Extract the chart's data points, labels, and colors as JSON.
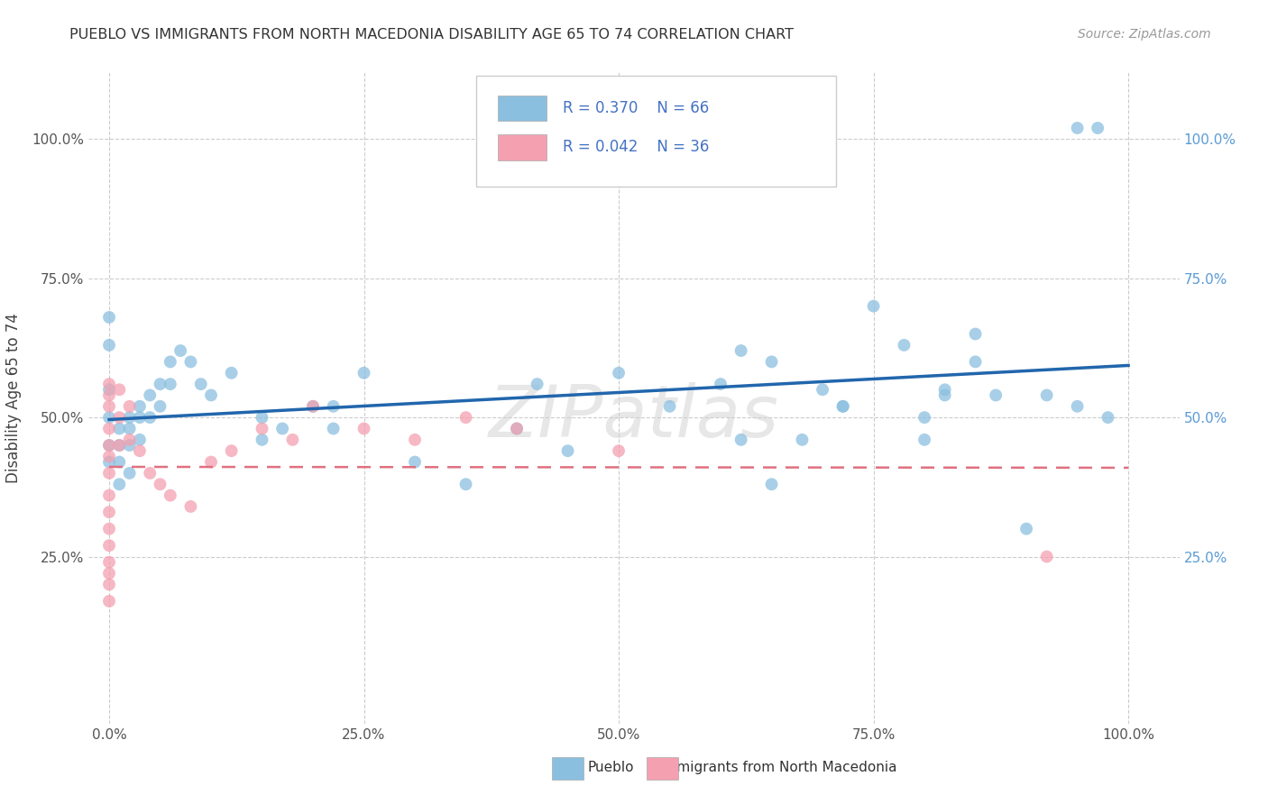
{
  "title": "PUEBLO VS IMMIGRANTS FROM NORTH MACEDONIA DISABILITY AGE 65 TO 74 CORRELATION CHART",
  "source_text": "Source: ZipAtlas.com",
  "ylabel": "Disability Age 65 to 74",
  "xlim": [
    -0.02,
    1.05
  ],
  "ylim": [
    -0.05,
    1.12
  ],
  "xtick_labels": [
    "0.0%",
    "25.0%",
    "50.0%",
    "75.0%",
    "100.0%"
  ],
  "xtick_vals": [
    0.0,
    0.25,
    0.5,
    0.75,
    1.0
  ],
  "ytick_labels": [
    "25.0%",
    "50.0%",
    "75.0%",
    "100.0%"
  ],
  "ytick_vals": [
    0.25,
    0.5,
    0.75,
    1.0
  ],
  "pueblo_color": "#8bbfdf",
  "pueblo_edge": "#8bbfdf",
  "immigrants_color": "#f4a0b0",
  "immigrants_edge": "#f4a0b0",
  "pueblo_R": 0.37,
  "pueblo_N": 66,
  "immigrants_R": 0.042,
  "immigrants_N": 36,
  "legend_color": "#4472c4",
  "pueblo_scatter_x": [
    0.0,
    0.0,
    0.0,
    0.0,
    0.0,
    0.0,
    0.01,
    0.01,
    0.01,
    0.01,
    0.02,
    0.02,
    0.02,
    0.02,
    0.03,
    0.03,
    0.03,
    0.04,
    0.04,
    0.05,
    0.05,
    0.06,
    0.06,
    0.07,
    0.08,
    0.09,
    0.1,
    0.12,
    0.15,
    0.15,
    0.17,
    0.2,
    0.22,
    0.22,
    0.25,
    0.3,
    0.35,
    0.4,
    0.42,
    0.45,
    0.5,
    0.55,
    0.6,
    0.62,
    0.65,
    0.68,
    0.7,
    0.72,
    0.75,
    0.78,
    0.8,
    0.82,
    0.85,
    0.87,
    0.9,
    0.92,
    0.95,
    0.95,
    0.97,
    0.98,
    0.62,
    0.65,
    0.72,
    0.8,
    0.82,
    0.85
  ],
  "pueblo_scatter_y": [
    0.68,
    0.63,
    0.55,
    0.5,
    0.45,
    0.42,
    0.48,
    0.45,
    0.42,
    0.38,
    0.5,
    0.48,
    0.45,
    0.4,
    0.52,
    0.5,
    0.46,
    0.54,
    0.5,
    0.56,
    0.52,
    0.6,
    0.56,
    0.62,
    0.6,
    0.56,
    0.54,
    0.58,
    0.5,
    0.46,
    0.48,
    0.52,
    0.52,
    0.48,
    0.58,
    0.42,
    0.38,
    0.48,
    0.56,
    0.44,
    0.58,
    0.52,
    0.56,
    0.62,
    0.6,
    0.46,
    0.55,
    0.52,
    0.7,
    0.63,
    0.5,
    0.54,
    0.65,
    0.54,
    0.3,
    0.54,
    0.52,
    1.02,
    1.02,
    0.5,
    0.46,
    0.38,
    0.52,
    0.46,
    0.55,
    0.6
  ],
  "immigrants_scatter_x": [
    0.0,
    0.0,
    0.0,
    0.0,
    0.0,
    0.0,
    0.0,
    0.0,
    0.0,
    0.0,
    0.0,
    0.0,
    0.0,
    0.0,
    0.0,
    0.01,
    0.01,
    0.01,
    0.02,
    0.02,
    0.03,
    0.04,
    0.05,
    0.06,
    0.08,
    0.1,
    0.12,
    0.15,
    0.18,
    0.2,
    0.25,
    0.3,
    0.35,
    0.4,
    0.5,
    0.92
  ],
  "immigrants_scatter_y": [
    0.56,
    0.54,
    0.52,
    0.48,
    0.45,
    0.43,
    0.4,
    0.36,
    0.33,
    0.3,
    0.27,
    0.24,
    0.22,
    0.2,
    0.17,
    0.55,
    0.5,
    0.45,
    0.52,
    0.46,
    0.44,
    0.4,
    0.38,
    0.36,
    0.34,
    0.42,
    0.44,
    0.48,
    0.46,
    0.52,
    0.48,
    0.46,
    0.5,
    0.48,
    0.44,
    0.25
  ]
}
